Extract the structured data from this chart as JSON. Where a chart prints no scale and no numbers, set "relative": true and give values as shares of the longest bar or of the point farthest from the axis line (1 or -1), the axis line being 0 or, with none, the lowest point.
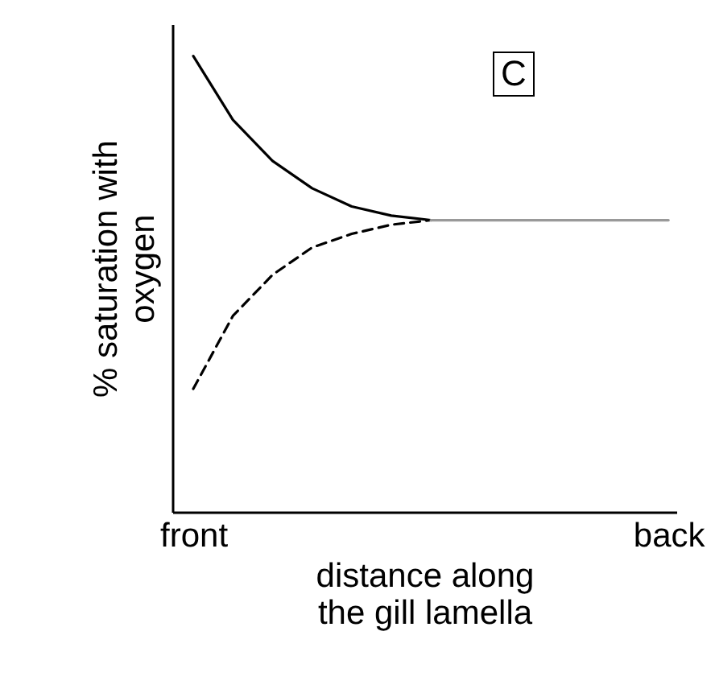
{
  "chart_data": {
    "type": "line",
    "relative": true,
    "xlabel": "distance along the gill lamella",
    "ylabel": "% saturation with oxygen",
    "categories": [
      "front",
      null,
      null,
      null,
      null,
      null,
      null,
      null,
      null,
      null,
      null,
      null,
      "back"
    ],
    "series": [
      {
        "color": "#000000",
        "line_style": "solid",
        "values": [
          1,
          0.86,
          0.77,
          0.71,
          0.67,
          0.65,
          0.64,
          null,
          null,
          null,
          null,
          null,
          null
        ]
      },
      {
        "color": "#000000",
        "line_style": "dashed",
        "values": [
          0.27,
          0.43,
          0.52,
          0.58,
          0.61,
          0.63,
          0.64,
          null,
          null,
          null,
          null,
          null,
          null
        ]
      },
      {
        "color": "#999999",
        "line_style": "solid",
        "values": [
          null,
          null,
          null,
          null,
          null,
          null,
          0.64,
          0.64,
          0.64,
          0.64,
          0.64,
          0.64,
          0.64
        ]
      }
    ],
    "annotations": [
      "C"
    ],
    "grid": false,
    "marker": "none"
  }
}
